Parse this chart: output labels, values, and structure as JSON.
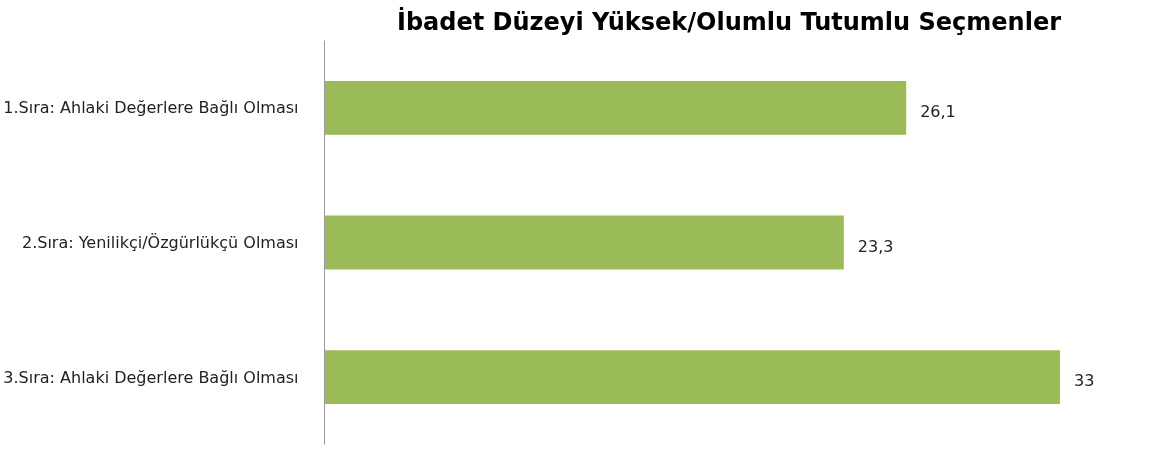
{
  "chart_data": {
    "type": "bar",
    "orientation": "horizontal",
    "title": "İbadet Düzeyi Yüksek/Olumlu Tutumlu Seçmenler",
    "categories": [
      "1.Sıra: Ahlaki Değerlere Bağlı Olması",
      "2.Sıra: Yenilikçi/Özgürlükçü Olması",
      "3.Sıra: Ahlaki Değerlere Bağlı Olması"
    ],
    "values": [
      26.1,
      23.3,
      33
    ],
    "value_labels": [
      "26,1",
      "23,3",
      "33"
    ],
    "color": "#9bbb59",
    "tick_labels": "y",
    "grid": false
  }
}
